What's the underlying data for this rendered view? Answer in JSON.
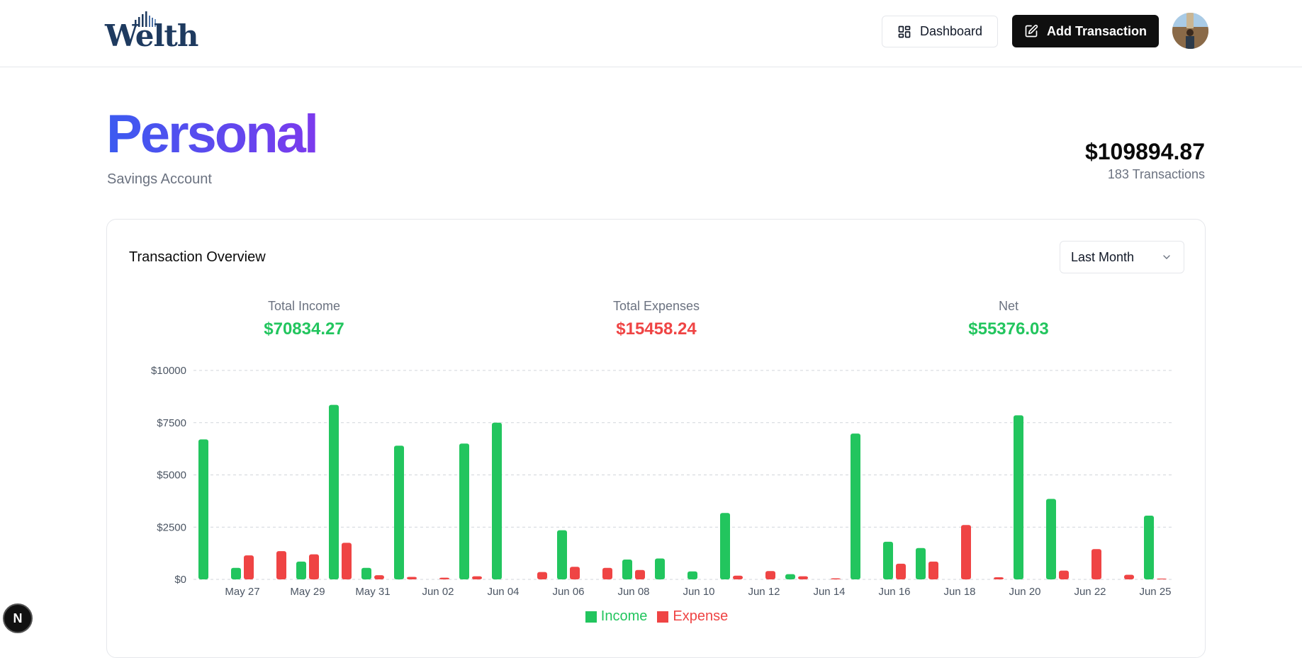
{
  "header": {
    "logo_text": "Welth",
    "dashboard_label": "Dashboard",
    "add_transaction_label": "Add Transaction"
  },
  "account": {
    "name": "Personal",
    "type": "Savings Account",
    "balance": "$109894.87",
    "transactions_count": "183 Transactions"
  },
  "overview": {
    "title": "Transaction Overview",
    "period": "Last Month",
    "total_income_label": "Total Income",
    "total_income": "$70834.27",
    "total_expenses_label": "Total Expenses",
    "total_expenses": "$15458.24",
    "net_label": "Net",
    "net": "$55376.03"
  },
  "colors": {
    "income": "#22c55e",
    "expense": "#ef4444",
    "title_gradient_start": "#3b5bf0",
    "title_gradient_end": "#7c3aed"
  },
  "icons": {
    "dashboard": "layout-dashboard-icon",
    "add": "pen-square-icon",
    "select": "chevron-down-icon"
  },
  "badge": {
    "letter": "N"
  },
  "chart_data": {
    "type": "bar",
    "title": "",
    "xlabel": "",
    "ylabel": "",
    "ylim": [
      0,
      10000
    ],
    "y_ticks": [
      "$0",
      "$2500",
      "$5000",
      "$7500",
      "$10000"
    ],
    "x_tick_labels": [
      "May 27",
      "May 29",
      "May 31",
      "Jun 02",
      "Jun 04",
      "Jun 06",
      "Jun 08",
      "Jun 10",
      "Jun 12",
      "Jun 14",
      "Jun 16",
      "Jun 18",
      "Jun 20",
      "Jun 22",
      "Jun 25"
    ],
    "grid": true,
    "legend_position": "bottom",
    "categories": [
      "May 26",
      "May 27",
      "May 28",
      "May 29",
      "May 30",
      "May 31",
      "Jun 01",
      "Jun 02",
      "Jun 03",
      "Jun 04",
      "Jun 05",
      "Jun 06",
      "Jun 07",
      "Jun 08",
      "Jun 09",
      "Jun 10",
      "Jun 11",
      "Jun 12",
      "Jun 13",
      "Jun 14",
      "Jun 15",
      "Jun 16",
      "Jun 17",
      "Jun 18",
      "Jun 19",
      "Jun 20",
      "Jun 21",
      "Jun 22",
      "Jun 23",
      "Jun 25"
    ],
    "series": [
      {
        "name": "Income",
        "values": [
          6700,
          550,
          0,
          850,
          8350,
          550,
          6400,
          0,
          6500,
          7500,
          0,
          2350,
          0,
          950,
          1000,
          380,
          3180,
          0,
          250,
          0,
          6980,
          1800,
          1500,
          0,
          0,
          7850,
          3850,
          0,
          0,
          3050
        ]
      },
      {
        "name": "Expense",
        "values": [
          0,
          1150,
          1350,
          1200,
          1750,
          200,
          120,
          80,
          150,
          0,
          350,
          600,
          550,
          450,
          0,
          0,
          180,
          400,
          150,
          50,
          0,
          750,
          850,
          2600,
          100,
          0,
          420,
          1450,
          220,
          40
        ]
      }
    ]
  }
}
